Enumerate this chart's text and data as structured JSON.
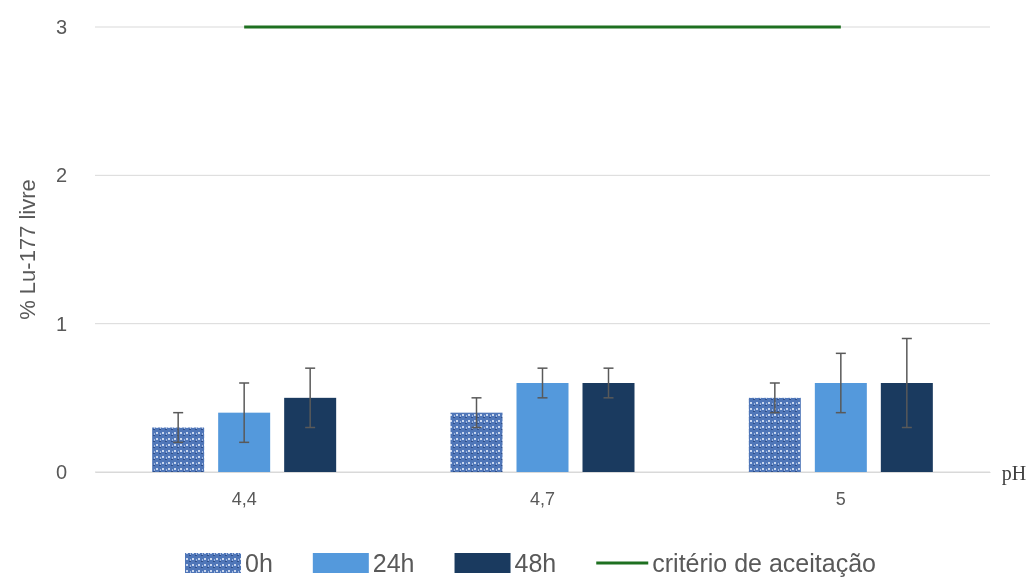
{
  "chart_data": {
    "type": "bar",
    "xlabel": "pH",
    "ylabel": "% Lu-177 livre",
    "categories": [
      "4,4",
      "4,7",
      "5"
    ],
    "ylim": [
      0,
      3
    ],
    "yticks": [
      0,
      1,
      2,
      3
    ],
    "grid": "y",
    "legend": "bottom",
    "series": [
      {
        "name": "0h",
        "color": "#4f76b8",
        "values": [
          0.3,
          0.4,
          0.5
        ],
        "errors": [
          0.1,
          0.1,
          0.1
        ]
      },
      {
        "name": "24h",
        "color": "#5499dc",
        "values": [
          0.4,
          0.6,
          0.6
        ],
        "errors": [
          0.2,
          0.1,
          0.2
        ]
      },
      {
        "name": "48h",
        "color": "#1a3a5f",
        "values": [
          0.5,
          0.6,
          0.6
        ],
        "errors": [
          0.2,
          0.1,
          0.3
        ]
      },
      {
        "name": "critério de aceitação",
        "type": "line",
        "color": "#1e7020",
        "values": [
          3,
          3,
          3
        ]
      }
    ]
  }
}
